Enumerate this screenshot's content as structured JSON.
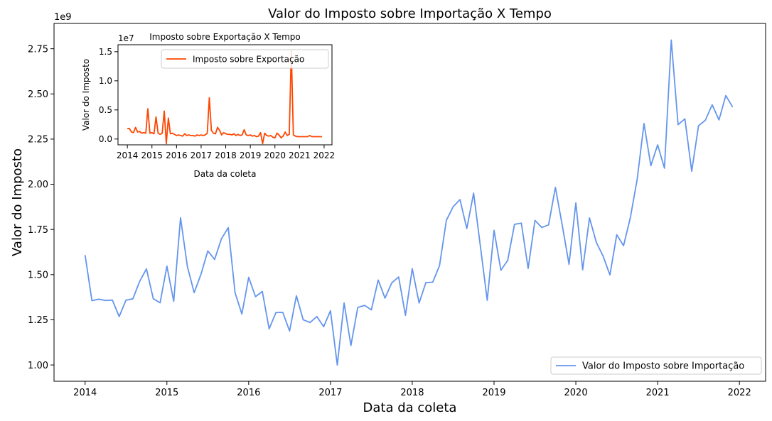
{
  "chart_data": [
    {
      "type": "line",
      "title": "Valor do Imposto sobre Importação X Tempo",
      "xlabel": "Data da coleta",
      "ylabel": "Valor do Imposto",
      "y_offset_label": "1e9",
      "x_ticks": [
        "2014",
        "2015",
        "2016",
        "2017",
        "2018",
        "2019",
        "2020",
        "2021",
        "2022"
      ],
      "y_ticks": [
        "1.00",
        "1.25",
        "1.50",
        "1.75",
        "2.00",
        "2.25",
        "2.50",
        "2.75"
      ],
      "xlim": [
        2013.62,
        2022.32
      ],
      "ylim": [
        0.91,
        2.89
      ],
      "legend_position": "lower right",
      "color": "#6495ED",
      "series": [
        {
          "name": "Valor do Imposto sobre Importação",
          "x_start": 2014.0,
          "x_step_months": 1,
          "y": [
            1.608,
            1.356,
            1.364,
            1.357,
            1.359,
            1.268,
            1.359,
            1.366,
            1.462,
            1.532,
            1.367,
            1.344,
            1.547,
            1.352,
            1.815,
            1.546,
            1.4,
            1.502,
            1.631,
            1.584,
            1.698,
            1.76,
            1.4,
            1.282,
            1.485,
            1.378,
            1.407,
            1.2,
            1.29,
            1.291,
            1.188,
            1.383,
            1.25,
            1.235,
            1.268,
            1.212,
            1.3,
            1.0,
            1.343,
            1.108,
            1.318,
            1.33,
            1.305,
            1.47,
            1.37,
            1.455,
            1.487,
            1.275,
            1.533,
            1.343,
            1.456,
            1.458,
            1.55,
            1.8,
            1.876,
            1.915,
            1.755,
            1.951,
            1.655,
            1.358,
            1.745,
            1.524,
            1.579,
            1.778,
            1.785,
            1.534,
            1.8,
            1.761,
            1.775,
            1.983,
            1.774,
            1.557,
            1.897,
            1.527,
            1.814,
            1.679,
            1.602,
            1.498,
            1.721,
            1.66,
            1.816,
            2.028,
            2.336,
            2.103,
            2.218,
            2.089,
            2.798,
            2.33,
            2.362,
            2.072,
            2.324,
            2.354,
            2.44,
            2.356,
            2.491,
            2.427
          ]
        }
      ]
    },
    {
      "type": "line",
      "title": "Imposto sobre Exportação X Tempo",
      "xlabel": "Data da coleta",
      "ylabel": "Valor do Imposto",
      "y_offset_label": "1e7",
      "x_ticks": [
        "2014",
        "2015",
        "2016",
        "2017",
        "2018",
        "2019",
        "2020",
        "2021",
        "2022"
      ],
      "y_ticks": [
        "0.0",
        "0.5",
        "1.0",
        "1.5"
      ],
      "xlim": [
        2013.62,
        2022.32
      ],
      "ylim": [
        -0.1,
        1.62
      ],
      "legend_position": "upper right",
      "color": "#FF4500",
      "series": [
        {
          "name": "Imposto sobre Exportação",
          "x_start": 2014.0,
          "x_step_months": 1,
          "y": [
            0.18,
            0.18,
            0.12,
            0.11,
            0.2,
            0.12,
            0.13,
            0.1,
            0.11,
            0.1,
            0.52,
            0.1,
            0.11,
            0.09,
            0.38,
            0.1,
            0.08,
            0.1,
            0.48,
            -0.08,
            0.36,
            0.09,
            0.1,
            0.08,
            0.06,
            0.07,
            0.06,
            0.05,
            0.09,
            0.06,
            0.07,
            0.06,
            0.06,
            0.05,
            0.07,
            0.06,
            0.07,
            0.06,
            0.07,
            0.1,
            0.71,
            0.15,
            0.1,
            0.09,
            0.2,
            0.15,
            0.07,
            0.11,
            0.09,
            0.08,
            0.08,
            0.07,
            0.09,
            0.06,
            0.08,
            0.06,
            0.07,
            0.16,
            0.07,
            0.06,
            0.07,
            0.05,
            0.06,
            0.04,
            0.05,
            0.11,
            -0.08,
            0.1,
            0.06,
            0.05,
            0.06,
            0.03,
            0.02,
            0.1,
            0.07,
            0.02,
            0.05,
            0.12,
            0.06,
            0.08,
            1.52,
            0.07,
            0.05,
            0.04,
            0.04,
            0.04,
            0.04,
            0.04,
            0.04,
            0.06,
            0.04,
            0.04,
            0.04,
            0.04,
            0.04,
            0.04
          ]
        }
      ]
    }
  ]
}
